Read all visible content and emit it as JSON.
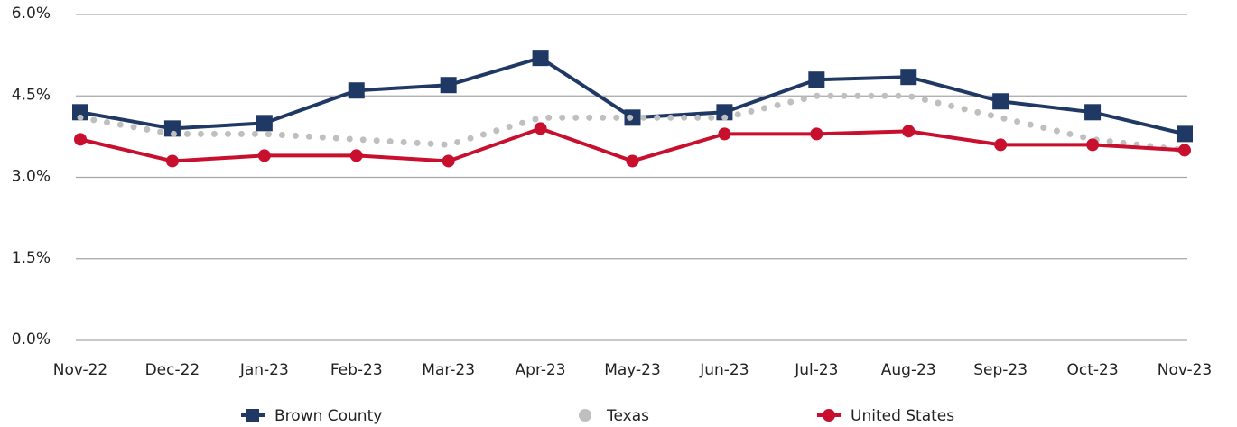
{
  "chart_data": {
    "type": "line",
    "categories": [
      "Nov-22",
      "Dec-22",
      "Jan-23",
      "Feb-23",
      "Mar-23",
      "Apr-23",
      "May-23",
      "Jun-23",
      "Jul-23",
      "Aug-23",
      "Sep-23",
      "Oct-23",
      "Nov-23"
    ],
    "series": [
      {
        "name": "Brown County",
        "color": "#1f3864",
        "marker": "square",
        "line": "solid",
        "values": [
          4.2,
          3.9,
          4.0,
          4.6,
          4.7,
          5.2,
          4.1,
          4.2,
          4.8,
          4.85,
          4.4,
          4.2,
          3.8
        ]
      },
      {
        "name": "Texas",
        "color": "#bfbfbf",
        "marker": "none",
        "line": "dotted",
        "values": [
          4.1,
          3.8,
          3.8,
          3.7,
          3.6,
          4.1,
          4.1,
          4.1,
          4.5,
          4.5,
          4.1,
          3.7,
          3.5
        ]
      },
      {
        "name": "United States",
        "color": "#c8102e",
        "marker": "circle",
        "line": "solid",
        "values": [
          3.7,
          3.3,
          3.4,
          3.4,
          3.3,
          3.9,
          3.3,
          3.8,
          3.8,
          3.85,
          3.6,
          3.6,
          3.5
        ]
      }
    ],
    "ylim": [
      0,
      6
    ],
    "yticks": [
      {
        "value": 0,
        "label": "0.0%"
      },
      {
        "value": 1.5,
        "label": "1.5%"
      },
      {
        "value": 3,
        "label": "3.0%"
      },
      {
        "value": 4.5,
        "label": "4.5%"
      },
      {
        "value": 6,
        "label": "6.0%"
      }
    ],
    "grid": true,
    "legend": "bottom"
  }
}
